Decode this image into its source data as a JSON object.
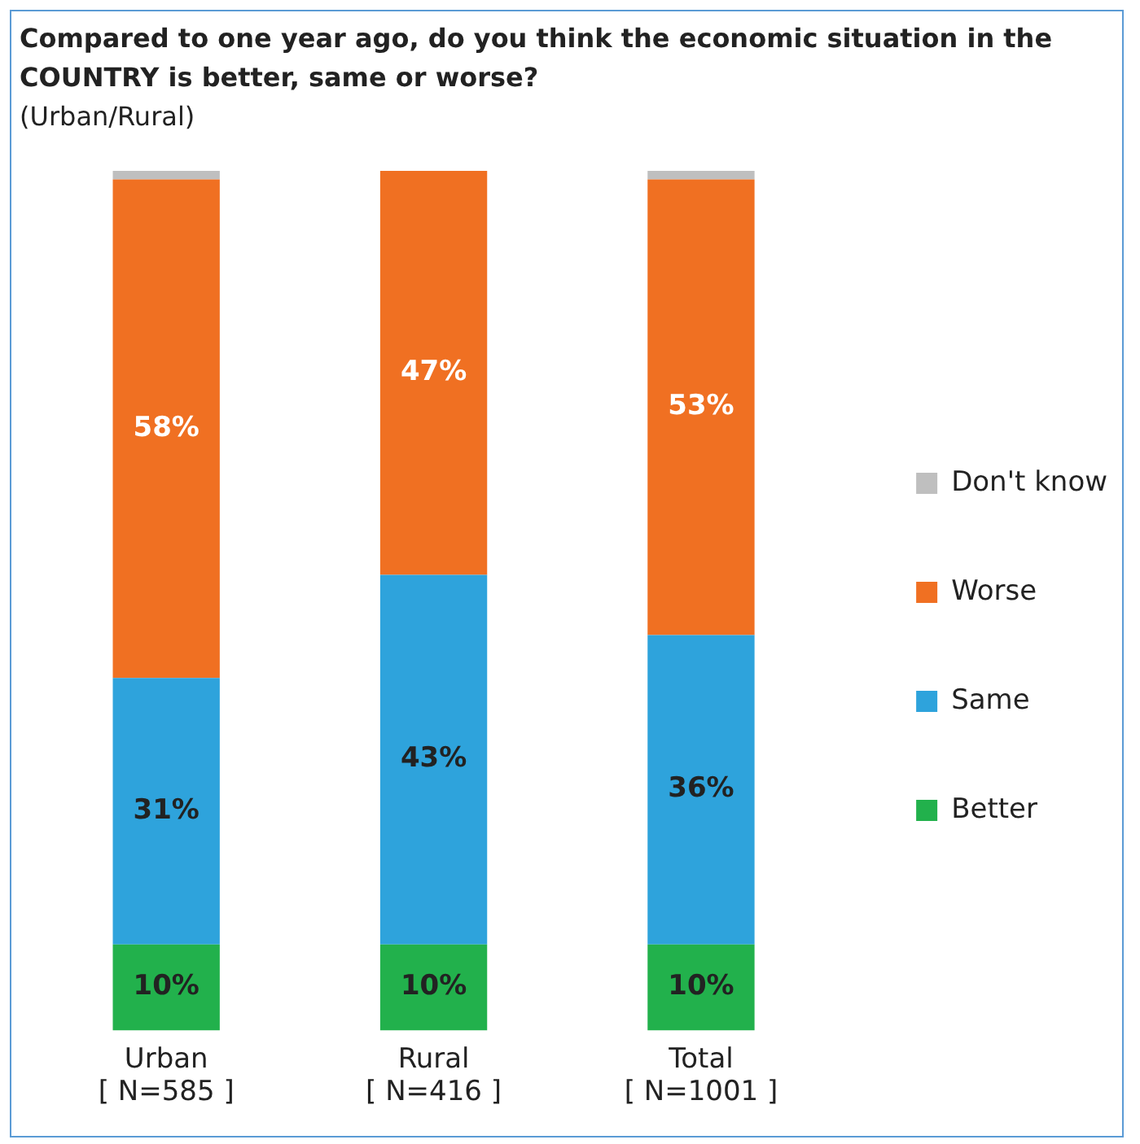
{
  "chart_data": {
    "type": "bar",
    "stacked": true,
    "title": "Compared to one year ago, do you think the economic situation in the COUNTRY is better, same or worse?",
    "subtitle": "(Urban/Rural)",
    "categories": [
      "Urban\n[ N=585 ]",
      "Rural\n[ N=416 ]",
      "Total\n[ N=1001 ]"
    ],
    "series": [
      {
        "name": "Better",
        "color": "#22b14c",
        "values": [
          10,
          10,
          10
        ],
        "value_labels": [
          "10%",
          "10%",
          "10%"
        ]
      },
      {
        "name": "Same",
        "color": "#2ea3dc",
        "values": [
          31,
          43,
          36
        ],
        "value_labels": [
          "31%",
          "43%",
          "36%"
        ]
      },
      {
        "name": "Worse",
        "color": "#f07022",
        "values": [
          58,
          47,
          53
        ],
        "value_labels": [
          "58%",
          "47%",
          "53%"
        ]
      },
      {
        "name": "Don't know",
        "color": "#bfbfbf",
        "values": [
          1,
          0,
          1
        ],
        "value_labels": [
          null,
          null,
          null
        ]
      }
    ],
    "grid": false,
    "legend": "right"
  }
}
